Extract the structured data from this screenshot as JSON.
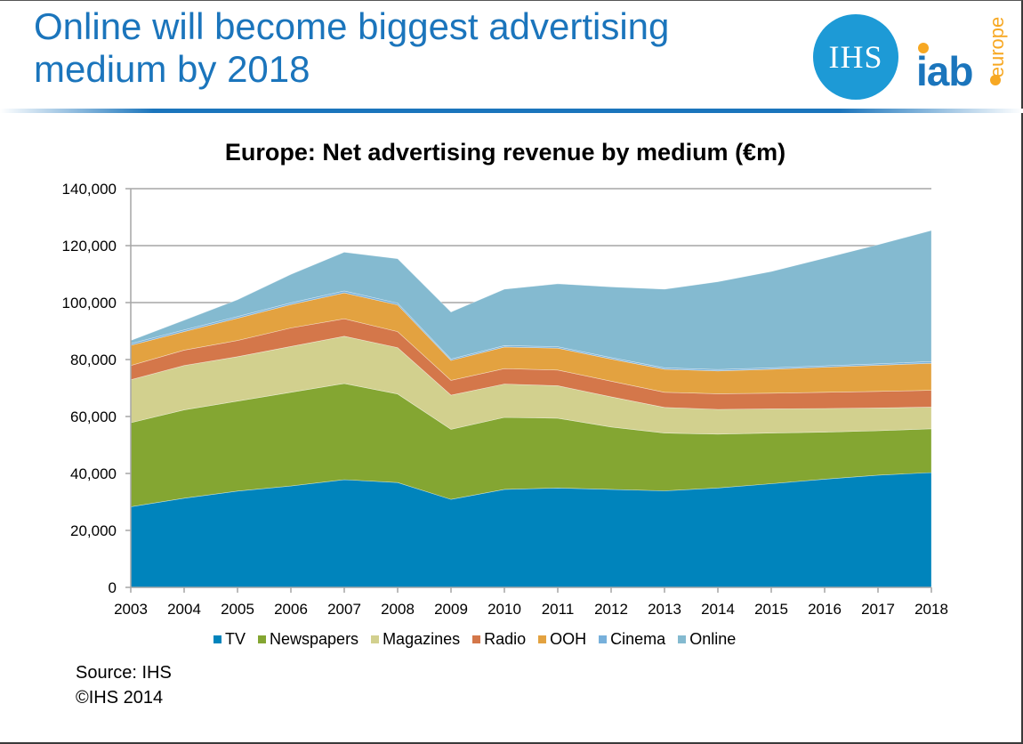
{
  "slide": {
    "title": "Online will become biggest advertising medium by 2018",
    "logos": {
      "ihs": "IHS",
      "iab": "iab",
      "iab_suffix": "europe"
    },
    "source": "Source: IHS",
    "copyright": "©IHS 2014"
  },
  "chart_data": {
    "type": "area",
    "stacked": true,
    "title": "Europe: Net advertising revenue by medium (€m)",
    "xlabel": "",
    "ylabel": "",
    "ylim": [
      0,
      140000
    ],
    "yticks": [
      0,
      20000,
      40000,
      60000,
      80000,
      100000,
      120000,
      140000
    ],
    "ytick_labels": [
      "0",
      "20,000",
      "40,000",
      "60,000",
      "80,000",
      "100,000",
      "120,000",
      "140,000"
    ],
    "grid": "horizontal",
    "legend_position": "bottom",
    "categories": [
      "2003",
      "2004",
      "2005",
      "2006",
      "2007",
      "2008",
      "2009",
      "2010",
      "2011",
      "2012",
      "2013",
      "2014",
      "2015",
      "2016",
      "2017",
      "2018"
    ],
    "series": [
      {
        "name": "TV",
        "color": "#0084bc",
        "values": [
          28300,
          31300,
          33800,
          35600,
          37800,
          36800,
          30900,
          34400,
          34900,
          34400,
          33900,
          34900,
          36400,
          38000,
          39400,
          40300
        ]
      },
      {
        "name": "Newspapers",
        "color": "#84a632",
        "values": [
          29500,
          31000,
          31600,
          32900,
          33800,
          31100,
          24600,
          25300,
          24500,
          21900,
          20300,
          18900,
          17800,
          16500,
          15600,
          15400
        ]
      },
      {
        "name": "Magazines",
        "color": "#d2d08e",
        "values": [
          15100,
          15600,
          15600,
          16100,
          16600,
          16300,
          12000,
          11700,
          11400,
          10600,
          9000,
          8700,
          8500,
          8300,
          8000,
          7600
        ]
      },
      {
        "name": "Radio",
        "color": "#d4774a",
        "values": [
          5000,
          5400,
          5700,
          6500,
          6100,
          5600,
          5200,
          5400,
          5500,
          5500,
          5300,
          5500,
          5500,
          5700,
          5800,
          5900
        ]
      },
      {
        "name": "OOH",
        "color": "#e3a240",
        "values": [
          7100,
          6500,
          7800,
          8200,
          9100,
          9400,
          7000,
          7600,
          7700,
          7800,
          8100,
          8000,
          8400,
          8800,
          9200,
          9500
        ]
      },
      {
        "name": "Cinema",
        "color": "#77b0db",
        "values": [
          600,
          600,
          600,
          600,
          700,
          600,
          500,
          500,
          500,
          500,
          500,
          500,
          500,
          500,
          500,
          600
        ]
      },
      {
        "name": "Online",
        "color": "#84bad0",
        "values": [
          1100,
          3400,
          5900,
          10000,
          13600,
          15600,
          16500,
          19800,
          22100,
          24800,
          27600,
          30800,
          33800,
          37800,
          41800,
          46000
        ]
      }
    ]
  }
}
